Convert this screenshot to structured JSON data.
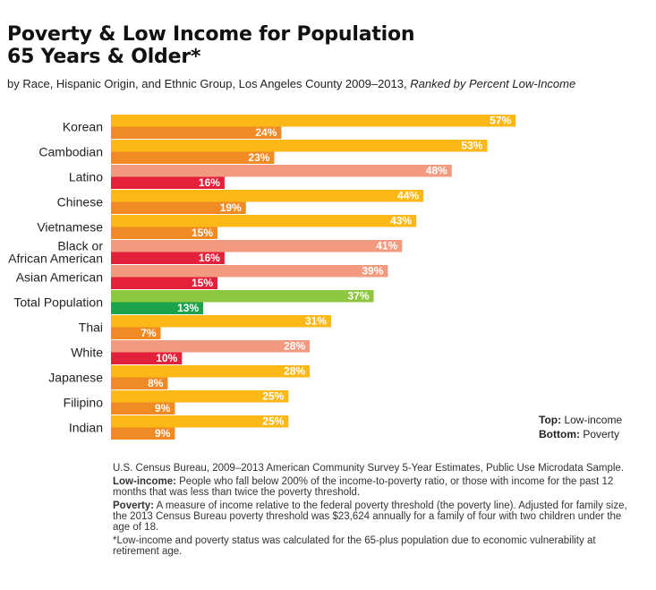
{
  "title_line1": "Poverty & Low Income for Population",
  "title_line2": "65 Years & Older*",
  "subtitle_main": "by Race, Hispanic Origin, and Ethnic Group, Los Angeles County 2009–2013,",
  "subtitle_italic": "Ranked by Percent Low-Income",
  "legend": {
    "top_label": "Top:",
    "top_text": "Low-income",
    "bottom_label": "Bottom:",
    "bottom_text": "Poverty"
  },
  "notes": {
    "source": "U.S. Census Bureau, 2009–2013 American Community Survey 5-Year Estimates, Public Use Microdata Sample.",
    "low_income_label": "Low-income:",
    "low_income_text": "People who fall below 200% of the income-to-poverty ratio, or those with income for the past 12 months that was less than twice the poverty threshold.",
    "poverty_label": "Poverty:",
    "poverty_text": "A measure of income relative to the federal poverty threshold (the poverty line). Adjusted for family size, the 2013 Census Bureau poverty threshold was $23,624 annually for a family of four with two children under the age of 18.",
    "footnote": "*Low-income and poverty status was calculated for the 65-plus population due to economic vulnerability at retirement age."
  },
  "colors": {
    "low_income_asian": "#fbb817",
    "poverty_asian": "#f08a25",
    "low_income_other": "#f29a7f",
    "poverty_other": "#e3213b",
    "low_income_total": "#8dc63f",
    "poverty_total": "#1aa34a"
  },
  "chart_data": {
    "type": "bar",
    "orientation": "horizontal",
    "categories": [
      "Korean",
      "Cambodian",
      "Latino",
      "Chinese",
      "Vietnamese",
      "Black or African American",
      "Asian American",
      "Total Population",
      "Thai",
      "White",
      "Japanese",
      "Filipino",
      "Indian"
    ],
    "category_lines": [
      [
        "Korean"
      ],
      [
        "Cambodian"
      ],
      [
        "Latino"
      ],
      [
        "Chinese"
      ],
      [
        "Vietnamese"
      ],
      [
        "Black or",
        "African American"
      ],
      [
        "Asian American"
      ],
      [
        "Total Population"
      ],
      [
        "Thai"
      ],
      [
        "White"
      ],
      [
        "Japanese"
      ],
      [
        "Filipino"
      ],
      [
        "Indian"
      ]
    ],
    "groups": [
      "asian",
      "asian",
      "other",
      "asian",
      "asian",
      "other",
      "other",
      "total",
      "asian",
      "other",
      "asian",
      "asian",
      "asian"
    ],
    "series": [
      {
        "name": "Low-income",
        "values": [
          57,
          53,
          48,
          44,
          43,
          41,
          39,
          37,
          31,
          28,
          28,
          25,
          25
        ]
      },
      {
        "name": "Poverty",
        "values": [
          24,
          23,
          16,
          19,
          15,
          16,
          15,
          13,
          7,
          10,
          8,
          9,
          9
        ]
      }
    ],
    "value_suffix": "%",
    "xlim": [
      0,
      60
    ],
    "title": "Poverty & Low Income for Population 65 Years & Older*",
    "xlabel": "",
    "ylabel": ""
  }
}
